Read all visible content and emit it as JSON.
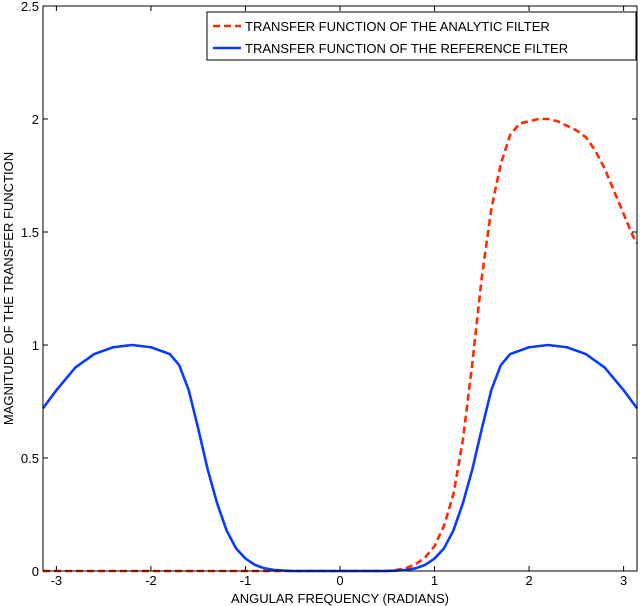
{
  "chart_data": {
    "type": "line",
    "title": "",
    "xlabel": "ANGULAR FREQUENCY (RADIANS)",
    "ylabel": "MAGNITUDE OF THE TRANSFER FUNCTION",
    "xlim": [
      -3.1416,
      3.1416
    ],
    "ylim": [
      0,
      2.5
    ],
    "xticks": [
      -3,
      -2,
      -1,
      0,
      1,
      2,
      3
    ],
    "yticks": [
      0,
      0.5,
      1,
      1.5,
      2,
      2.5
    ],
    "xtick_labels": [
      "-3",
      "-2",
      "-1",
      "0",
      "1",
      "2",
      "3"
    ],
    "ytick_labels": [
      "0",
      "0.5",
      "1",
      "1.5",
      "2",
      "2.5"
    ],
    "grid": false,
    "legend_position": "top-right",
    "series": [
      {
        "name": "TRANSFER FUNCTION OF THE ANALYTIC FILTER",
        "color": "#ff2a00",
        "style": "dashed",
        "x": [
          -3.1416,
          -2.5,
          -2.0,
          -1.5,
          -1.0,
          -0.5,
          0.0,
          0.5,
          0.6,
          0.7,
          0.8,
          0.9,
          1.0,
          1.1,
          1.2,
          1.3,
          1.4,
          1.5,
          1.6,
          1.7,
          1.8,
          1.9,
          2.0,
          2.1,
          2.2,
          2.3,
          2.4,
          2.5,
          2.6,
          2.7,
          2.8,
          2.9,
          3.0,
          3.1,
          3.1416
        ],
        "y": [
          0,
          0,
          0,
          0,
          0,
          0,
          0,
          0.0,
          0.005,
          0.013,
          0.03,
          0.06,
          0.11,
          0.2,
          0.34,
          0.58,
          0.92,
          1.3,
          1.6,
          1.8,
          1.93,
          1.98,
          1.99,
          2.0,
          2.0,
          1.99,
          1.97,
          1.95,
          1.92,
          1.86,
          1.78,
          1.68,
          1.58,
          1.48,
          1.45
        ]
      },
      {
        "name": "TRANSFER FUNCTION OF THE REFERENCE FILTER",
        "color": "#0a3cff",
        "style": "solid",
        "x": [
          -3.1416,
          -3.0,
          -2.8,
          -2.6,
          -2.4,
          -2.2,
          -2.0,
          -1.8,
          -1.7,
          -1.6,
          -1.5,
          -1.4,
          -1.3,
          -1.2,
          -1.1,
          -1.0,
          -0.9,
          -0.8,
          -0.7,
          -0.6,
          -0.5,
          0.0,
          0.5,
          0.6,
          0.7,
          0.8,
          0.9,
          1.0,
          1.1,
          1.2,
          1.3,
          1.4,
          1.5,
          1.6,
          1.7,
          1.8,
          2.0,
          2.2,
          2.4,
          2.6,
          2.8,
          3.0,
          3.1416
        ],
        "y": [
          0.72,
          0.8,
          0.9,
          0.96,
          0.99,
          1.0,
          0.99,
          0.96,
          0.91,
          0.8,
          0.63,
          0.45,
          0.3,
          0.18,
          0.1,
          0.055,
          0.027,
          0.012,
          0.005,
          0.002,
          0.0,
          0.0,
          0.0,
          0.002,
          0.005,
          0.012,
          0.027,
          0.055,
          0.1,
          0.18,
          0.3,
          0.45,
          0.63,
          0.8,
          0.91,
          0.96,
          0.99,
          1.0,
          0.99,
          0.96,
          0.9,
          0.8,
          0.72
        ]
      }
    ]
  }
}
